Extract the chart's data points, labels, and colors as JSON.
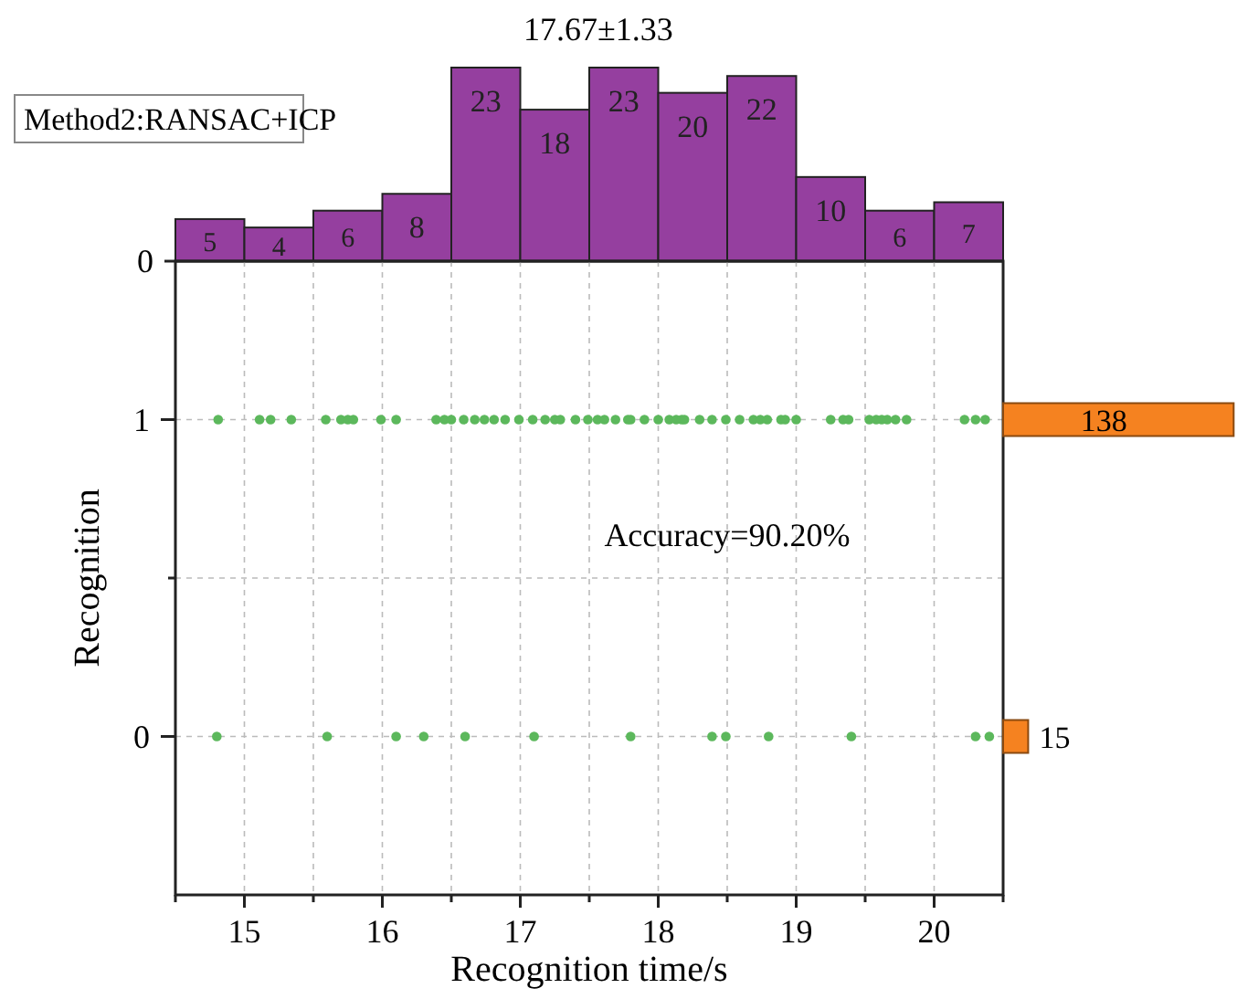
{
  "chart_data": [
    {
      "type": "bar",
      "title": "17.67±1.33",
      "annotations": [
        "Method2:RANSAC+ICP",
        "0"
      ],
      "categories": [
        null,
        null,
        null,
        null,
        null,
        null,
        null,
        null,
        null,
        null,
        null,
        null
      ],
      "values": [
        5,
        4,
        6,
        8,
        23,
        18,
        23,
        20,
        22,
        10,
        6,
        7
      ],
      "color": "#953f9f",
      "data_labels": true
    },
    {
      "type": "scatter",
      "xlabel": "Recognition time/s",
      "ylabel": "Recognition",
      "annotations": [
        "Accuracy=90.20%"
      ],
      "x": [
        14.81,
        15.11,
        15.19,
        15.34,
        15.59,
        15.7,
        15.75,
        15.79,
        15.99,
        16.1,
        16.39,
        16.45,
        16.5,
        16.59,
        16.67,
        16.74,
        16.81,
        16.89,
        16.99,
        17.09,
        17.18,
        17.25,
        17.29,
        17.4,
        17.49,
        17.56,
        17.61,
        17.69,
        17.78,
        17.8,
        17.9,
        18.0,
        18.08,
        18.13,
        18.17,
        18.19,
        18.3,
        18.39,
        18.49,
        18.59,
        18.69,
        18.74,
        18.79,
        18.89,
        18.92,
        19.0,
        19.25,
        19.34,
        19.38,
        19.53,
        19.58,
        19.62,
        19.66,
        19.72,
        19.8,
        20.22,
        20.3,
        20.37,
        14.8,
        15.6,
        16.1,
        16.3,
        16.6,
        17.1,
        17.8,
        18.39,
        18.49,
        18.8,
        19.4,
        20.3,
        20.4
      ],
      "values": [
        1,
        1,
        1,
        1,
        1,
        1,
        1,
        1,
        1,
        1,
        1,
        1,
        1,
        1,
        1,
        1,
        1,
        1,
        1,
        1,
        1,
        1,
        1,
        1,
        1,
        1,
        1,
        1,
        1,
        1,
        1,
        1,
        1,
        1,
        1,
        1,
        1,
        1,
        1,
        1,
        1,
        1,
        1,
        1,
        1,
        1,
        1,
        1,
        1,
        1,
        1,
        1,
        1,
        1,
        1,
        1,
        1,
        1,
        0,
        0,
        0,
        0,
        0,
        0,
        0,
        0,
        0,
        0,
        0,
        0,
        0
      ],
      "color": "#5cb85c",
      "marker": "circle",
      "grid": true,
      "xlim": [
        14.5,
        20.5
      ],
      "xticks": [
        {
          "value": 14.5,
          "label": null
        },
        15,
        {
          "value": 15.5,
          "label": null
        },
        16,
        {
          "value": 16.5,
          "label": null
        },
        17,
        {
          "value": 17.5,
          "label": null
        },
        18,
        {
          "value": 18.5,
          "label": null
        },
        19,
        {
          "value": 19.5,
          "label": null
        },
        20,
        {
          "value": 20.5,
          "label": null
        }
      ],
      "ylim": [
        -0.5,
        1.5
      ],
      "yticks": [
        0,
        {
          "value": 0.5,
          "label": null
        },
        1
      ]
    },
    {
      "type": "bar",
      "orientation": "horizontal",
      "categories": [
        null,
        null
      ],
      "values": [
        138,
        15
      ],
      "color": "#f58220",
      "data_labels": true,
      "xlim": [
        0,
        140
      ]
    }
  ]
}
